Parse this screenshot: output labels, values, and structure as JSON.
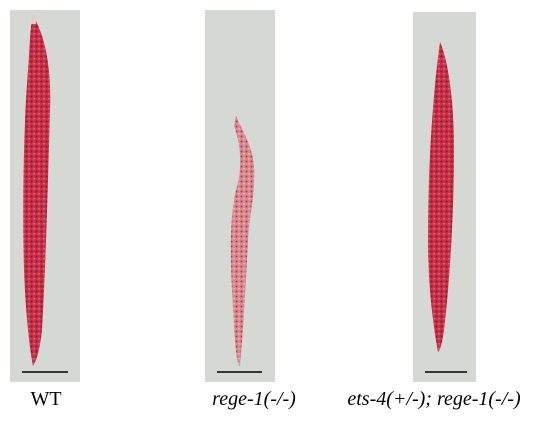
{
  "panels": [
    {
      "label": "WT"
    },
    {
      "label": "rege-1(-/-)"
    },
    {
      "label": "ets-4(+/-); rege-1(-/-)"
    }
  ]
}
